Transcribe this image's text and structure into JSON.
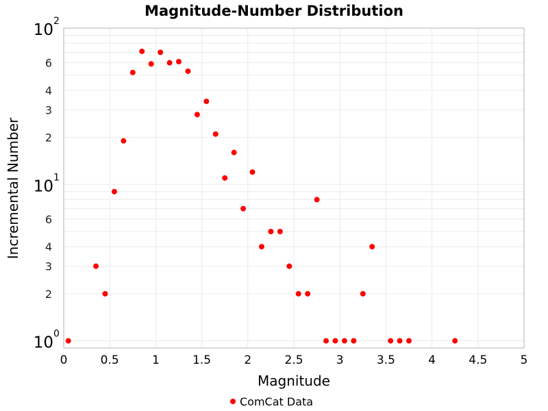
{
  "chart_data": {
    "type": "scatter",
    "title": "Magnitude-Number Distribution",
    "xlabel": "Magnitude",
    "ylabel": "Incremental Number",
    "xlim": [
      0,
      5
    ],
    "ylim": [
      0.9,
      100
    ],
    "yscale": "log",
    "grid": true,
    "legend_position": "bottom",
    "x_ticks": [
      "0",
      "0.5",
      "1",
      "1.5",
      "2",
      "2.5",
      "3",
      "3.5",
      "4",
      "4.5",
      "5"
    ],
    "y_ticks": [
      {
        "value": 1,
        "base": "10",
        "exp": "0"
      },
      {
        "value": 2,
        "label": "2"
      },
      {
        "value": 3,
        "label": "3"
      },
      {
        "value": 4,
        "label": "4"
      },
      {
        "value": 6,
        "label": "6"
      },
      {
        "value": 10,
        "base": "10",
        "exp": "1"
      },
      {
        "value": 20,
        "label": "2"
      },
      {
        "value": 30,
        "label": "3"
      },
      {
        "value": 40,
        "label": "4"
      },
      {
        "value": 60,
        "label": "6"
      },
      {
        "value": 100,
        "base": "10",
        "exp": "2"
      }
    ],
    "series": [
      {
        "name": "ComCat Data",
        "color": "#ff0000",
        "x": [
          0.05,
          0.35,
          0.45,
          0.55,
          0.65,
          0.75,
          0.85,
          0.95,
          1.05,
          1.15,
          1.25,
          1.35,
          1.45,
          1.55,
          1.65,
          1.75,
          1.85,
          1.95,
          2.05,
          2.15,
          2.25,
          2.35,
          2.45,
          2.55,
          2.65,
          2.75,
          2.85,
          2.95,
          3.05,
          3.15,
          3.25,
          3.35,
          3.55,
          3.65,
          3.75,
          4.25
        ],
        "y": [
          1,
          3,
          2,
          9,
          19,
          52,
          71,
          59,
          70,
          60,
          61,
          53,
          28,
          34,
          21,
          11,
          16,
          7,
          12,
          4,
          5,
          5,
          3,
          2,
          2,
          8,
          1,
          1,
          1,
          1,
          2,
          4,
          1,
          1,
          1,
          1
        ]
      }
    ]
  }
}
